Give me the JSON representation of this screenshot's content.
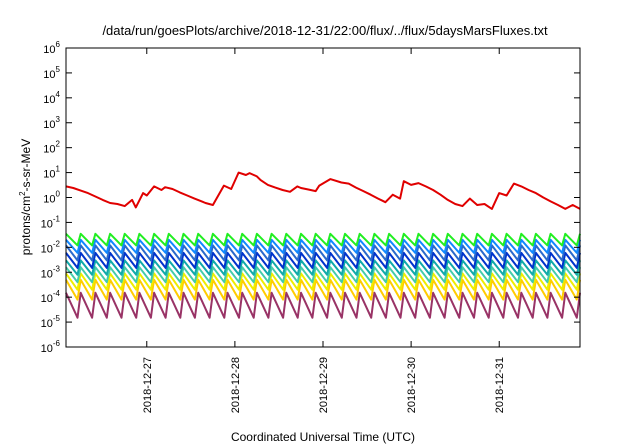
{
  "chart_data": {
    "type": "line",
    "title": "/data/run/goesPlots/archive/2018-12-31/22:00/flux/../flux/5daysMarsFluxes.txt",
    "xlabel": "Coordinated Universal Time (UTC)",
    "ylabel": "protons/cm²-s-sr-MeV",
    "ylabel_parts": {
      "base": "protons/cm",
      "sup": "2",
      "rest": "-s-sr-MeV"
    },
    "y_scale": "log",
    "ylim": [
      1e-06,
      1000000.0
    ],
    "y_ticks": [
      {
        "base": "10",
        "exp": "6",
        "value": 1000000.0
      },
      {
        "base": "10",
        "exp": "5",
        "value": 100000.0
      },
      {
        "base": "10",
        "exp": "4",
        "value": 10000.0
      },
      {
        "base": "10",
        "exp": "3",
        "value": 1000.0
      },
      {
        "base": "10",
        "exp": "2",
        "value": 100.0
      },
      {
        "base": "10",
        "exp": "1",
        "value": 10.0
      },
      {
        "base": "10",
        "exp": "0",
        "value": 1.0
      },
      {
        "base": "10",
        "exp": "-1",
        "value": 0.1
      },
      {
        "base": "10",
        "exp": "-2",
        "value": 0.01
      },
      {
        "base": "10",
        "exp": "-3",
        "value": 0.001
      },
      {
        "base": "10",
        "exp": "-4",
        "value": 0.0001
      },
      {
        "base": "10",
        "exp": "-5",
        "value": 1e-05
      },
      {
        "base": "10",
        "exp": "-6",
        "value": 1e-06
      }
    ],
    "xlim": [
      "2018-12-26T02:00",
      "2018-12-31T22:00"
    ],
    "x_ticks": [
      "2018-12-27",
      "2018-12-28",
      "2018-12-29",
      "2018-12-30",
      "2018-12-31"
    ],
    "grid": false,
    "legend": "none",
    "series": [
      {
        "color": "#e00000",
        "stroke_width": 2,
        "x": [
          "2018-12-26T02:00",
          "2018-12-26T04:00",
          "2018-12-26T06:00",
          "2018-12-26T08:00",
          "2018-12-26T10:00",
          "2018-12-26T12:00",
          "2018-12-26T14:00",
          "2018-12-26T16:00",
          "2018-12-26T18:00",
          "2018-12-26T20:00",
          "2018-12-26T21:00",
          "2018-12-26T23:00",
          "2018-12-27T00:00",
          "2018-12-27T02:00",
          "2018-12-27T04:00",
          "2018-12-27T05:00",
          "2018-12-27T07:00",
          "2018-12-27T09:00",
          "2018-12-27T11:00",
          "2018-12-27T13:00",
          "2018-12-27T15:00",
          "2018-12-27T16:00",
          "2018-12-27T18:00",
          "2018-12-27T19:00",
          "2018-12-27T21:00",
          "2018-12-27T23:00",
          "2018-12-28T01:00",
          "2018-12-28T03:00",
          "2018-12-28T04:00",
          "2018-12-28T06:00",
          "2018-12-28T07:00",
          "2018-12-28T09:00",
          "2018-12-28T11:00",
          "2018-12-28T13:00",
          "2018-12-28T15:00",
          "2018-12-28T17:00",
          "2018-12-28T18:00",
          "2018-12-28T20:00",
          "2018-12-28T22:00",
          "2018-12-28T23:00",
          "2018-12-29T02:00",
          "2018-12-29T05:00",
          "2018-12-29T07:00",
          "2018-12-29T09:00",
          "2018-12-29T11:00",
          "2018-12-29T13:00",
          "2018-12-29T15:00",
          "2018-12-29T17:00",
          "2018-12-29T19:00",
          "2018-12-29T21:00",
          "2018-12-29T22:00",
          "2018-12-30T00:00",
          "2018-12-30T02:00",
          "2018-12-30T04:00",
          "2018-12-30T06:00",
          "2018-12-30T08:00",
          "2018-12-30T10:00",
          "2018-12-30T12:00",
          "2018-12-30T14:00",
          "2018-12-30T16:00",
          "2018-12-30T18:00",
          "2018-12-30T20:00",
          "2018-12-30T22:00",
          "2018-12-31T00:00",
          "2018-12-31T02:00",
          "2018-12-31T04:00",
          "2018-12-31T06:00",
          "2018-12-31T08:00",
          "2018-12-31T10:00",
          "2018-12-31T12:00",
          "2018-12-31T14:00",
          "2018-12-31T16:00",
          "2018-12-31T18:00",
          "2018-12-31T20:00",
          "2018-12-31T22:00"
        ],
        "values": [
          2.8,
          2.4,
          1.9,
          1.5,
          1.1,
          0.8,
          0.6,
          0.55,
          0.45,
          0.8,
          0.4,
          1.5,
          1.2,
          2.8,
          2.0,
          2.6,
          2.2,
          1.6,
          1.2,
          0.9,
          0.7,
          0.6,
          0.5,
          0.9,
          3.0,
          2.2,
          10.0,
          8.0,
          9.5,
          7.0,
          5.0,
          3.2,
          2.5,
          2.0,
          1.7,
          2.8,
          2.4,
          2.1,
          1.8,
          3.0,
          5.5,
          4.0,
          3.6,
          2.5,
          1.8,
          1.3,
          0.9,
          0.65,
          1.3,
          0.9,
          4.5,
          3.2,
          3.8,
          2.8,
          2.0,
          1.3,
          0.8,
          0.55,
          0.45,
          0.9,
          0.5,
          0.55,
          0.35,
          1.5,
          1.2,
          3.6,
          2.8,
          2.0,
          1.5,
          1.0,
          0.7,
          0.5,
          0.35,
          0.5,
          0.35
        ]
      },
      {
        "color": "#22ee22",
        "stroke_width": 2,
        "period_hours": 4,
        "low": 0.012,
        "high": 0.035
      },
      {
        "color": "#1188ff",
        "stroke_width": 2,
        "period_hours": 4,
        "low": 0.006,
        "high": 0.02
      },
      {
        "color": "#2a6acb",
        "stroke_width": 2,
        "period_hours": 4,
        "low": 0.003,
        "high": 0.012
      },
      {
        "color": "#0033cc",
        "stroke_width": 2,
        "period_hours": 4,
        "low": 0.0015,
        "high": 0.006
      },
      {
        "color": "#11aaaa",
        "stroke_width": 2,
        "period_hours": 4,
        "low": 0.0008,
        "high": 0.003
      },
      {
        "color": "#44ccaa",
        "stroke_width": 2,
        "period_hours": 4,
        "low": 0.0004,
        "high": 0.0016
      },
      {
        "color": "#eeee00",
        "stroke_width": 2,
        "period_hours": 4,
        "low": 0.0002,
        "high": 0.0009
      },
      {
        "color": "#ffcc00",
        "stroke_width": 2,
        "period_hours": 4,
        "low": 8e-05,
        "high": 0.0005
      },
      {
        "color": "#993366",
        "stroke_width": 2,
        "period_hours": 4,
        "low": 1.5e-05,
        "high": 0.00015
      }
    ]
  }
}
